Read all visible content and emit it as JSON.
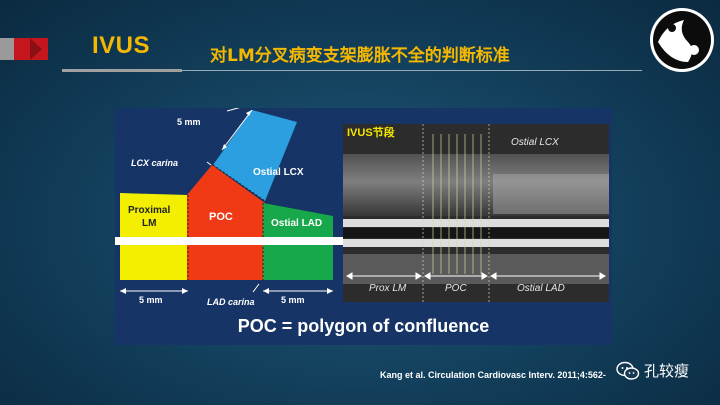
{
  "header": {
    "title": "IVUS",
    "subtitle": "对LM分叉病变支架膨胀不全的判断标准"
  },
  "diagram": {
    "label_5mm_top": "5 mm",
    "label_lcx_carina": "LCX carina",
    "label_ostial_lcx": "Ostial LCX",
    "label_proximal": "Proximal",
    "label_lm": "LM",
    "label_poc": "POC",
    "label_ostial_lad": "Ostial LAD",
    "label_5mm_left": "5 mm",
    "label_lad_carina": "LAD carina",
    "label_5mm_right": "5 mm",
    "colors": {
      "lm": "#f4ef00",
      "poc": "#f03a16",
      "lad": "#16a84a",
      "lcx": "#2b9fe0"
    }
  },
  "ivus": {
    "segment_label": "IVUS节段",
    "label_ostial_lcx": "Ostial LCX",
    "label_prox_lm": "Prox LM",
    "label_poc": "POC",
    "label_ostial_lad": "Ostial LAD"
  },
  "caption": "POC = polygon of confluence",
  "citation": "Kang et al. Circulation Cardiovasc Interv. 2011;4:562-",
  "account": {
    "name": "孔较瘦"
  }
}
